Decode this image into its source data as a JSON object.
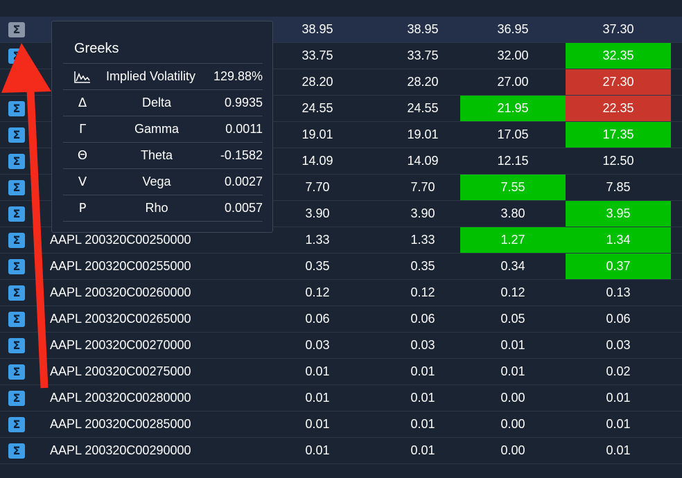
{
  "rows": [
    {
      "symbol": "",
      "c1": "38.95",
      "c2": "38.95",
      "c3": "36.95",
      "c4": "37.30",
      "c3_color": "",
      "c4_color": "",
      "active": true
    },
    {
      "symbol": "",
      "c1": "33.75",
      "c2": "33.75",
      "c3": "32.00",
      "c4": "32.35",
      "c3_color": "",
      "c4_color": "green"
    },
    {
      "symbol": "",
      "c1": "28.20",
      "c2": "28.20",
      "c3": "27.00",
      "c4": "27.30",
      "c3_color": "",
      "c4_color": "red"
    },
    {
      "symbol": "",
      "c1": "24.55",
      "c2": "24.55",
      "c3": "21.95",
      "c4": "22.35",
      "c3_color": "green",
      "c4_color": "red"
    },
    {
      "symbol": "",
      "c1": "19.01",
      "c2": "19.01",
      "c3": "17.05",
      "c4": "17.35",
      "c3_color": "",
      "c4_color": "green"
    },
    {
      "symbol": "",
      "c1": "14.09",
      "c2": "14.09",
      "c3": "12.15",
      "c4": "12.50",
      "c3_color": "",
      "c4_color": ""
    },
    {
      "symbol": "",
      "c1": "7.70",
      "c2": "7.70",
      "c3": "7.55",
      "c4": "7.85",
      "c3_color": "green",
      "c4_color": ""
    },
    {
      "symbol": "",
      "c1": "3.90",
      "c2": "3.90",
      "c3": "3.80",
      "c4": "3.95",
      "c3_color": "",
      "c4_color": "green"
    },
    {
      "symbol": "AAPL 200320C00250000",
      "c1": "1.33",
      "c2": "1.33",
      "c3": "1.27",
      "c4": "1.34",
      "c3_color": "green",
      "c4_color": "green"
    },
    {
      "symbol": "AAPL 200320C00255000",
      "c1": "0.35",
      "c2": "0.35",
      "c3": "0.34",
      "c4": "0.37",
      "c3_color": "",
      "c4_color": "green"
    },
    {
      "symbol": "AAPL 200320C00260000",
      "c1": "0.12",
      "c2": "0.12",
      "c3": "0.12",
      "c4": "0.13",
      "c3_color": "",
      "c4_color": ""
    },
    {
      "symbol": "AAPL 200320C00265000",
      "c1": "0.06",
      "c2": "0.06",
      "c3": "0.05",
      "c4": "0.06",
      "c3_color": "",
      "c4_color": ""
    },
    {
      "symbol": "AAPL 200320C00270000",
      "c1": "0.03",
      "c2": "0.03",
      "c3": "0.01",
      "c4": "0.03",
      "c3_color": "",
      "c4_color": ""
    },
    {
      "symbol": "AAPL 200320C00275000",
      "c1": "0.01",
      "c2": "0.01",
      "c3": "0.01",
      "c4": "0.02",
      "c3_color": "",
      "c4_color": ""
    },
    {
      "symbol": "AAPL 200320C00280000",
      "c1": "0.01",
      "c2": "0.01",
      "c3": "0.00",
      "c4": "0.01",
      "c3_color": "",
      "c4_color": ""
    },
    {
      "symbol": "AAPL 200320C00285000",
      "c1": "0.01",
      "c2": "0.01",
      "c3": "0.00",
      "c4": "0.01",
      "c3_color": "",
      "c4_color": ""
    },
    {
      "symbol": "AAPL 200320C00290000",
      "c1": "0.01",
      "c2": "0.01",
      "c3": "0.00",
      "c4": "0.01",
      "c3_color": "",
      "c4_color": ""
    }
  ],
  "greeks": {
    "title": "Greeks",
    "items": [
      {
        "symbol": "",
        "icon": "chart-icon",
        "name": "Implied Volatility",
        "value": "129.88%"
      },
      {
        "symbol": "Δ",
        "icon": "delta-symbol",
        "name": "Delta",
        "value": "0.9935"
      },
      {
        "symbol": "Γ",
        "icon": "gamma-symbol",
        "name": "Gamma",
        "value": "0.0011"
      },
      {
        "symbol": "Θ",
        "icon": "theta-symbol",
        "name": "Theta",
        "value": "-0.1582"
      },
      {
        "symbol": "V",
        "icon": "vega-symbol",
        "name": "Vega",
        "value": "0.0027"
      },
      {
        "symbol": "P",
        "icon": "rho-symbol",
        "name": "Rho",
        "value": "0.0057"
      }
    ]
  },
  "icons": {
    "sigma_glyph": "Σ",
    "sigma_name": "sigma-icon"
  },
  "colors": {
    "background": "#1b2433",
    "green": "#00c000",
    "red": "#c9362b",
    "sigma_button": "#3f9ee8",
    "arrow": "#f42a1a"
  }
}
